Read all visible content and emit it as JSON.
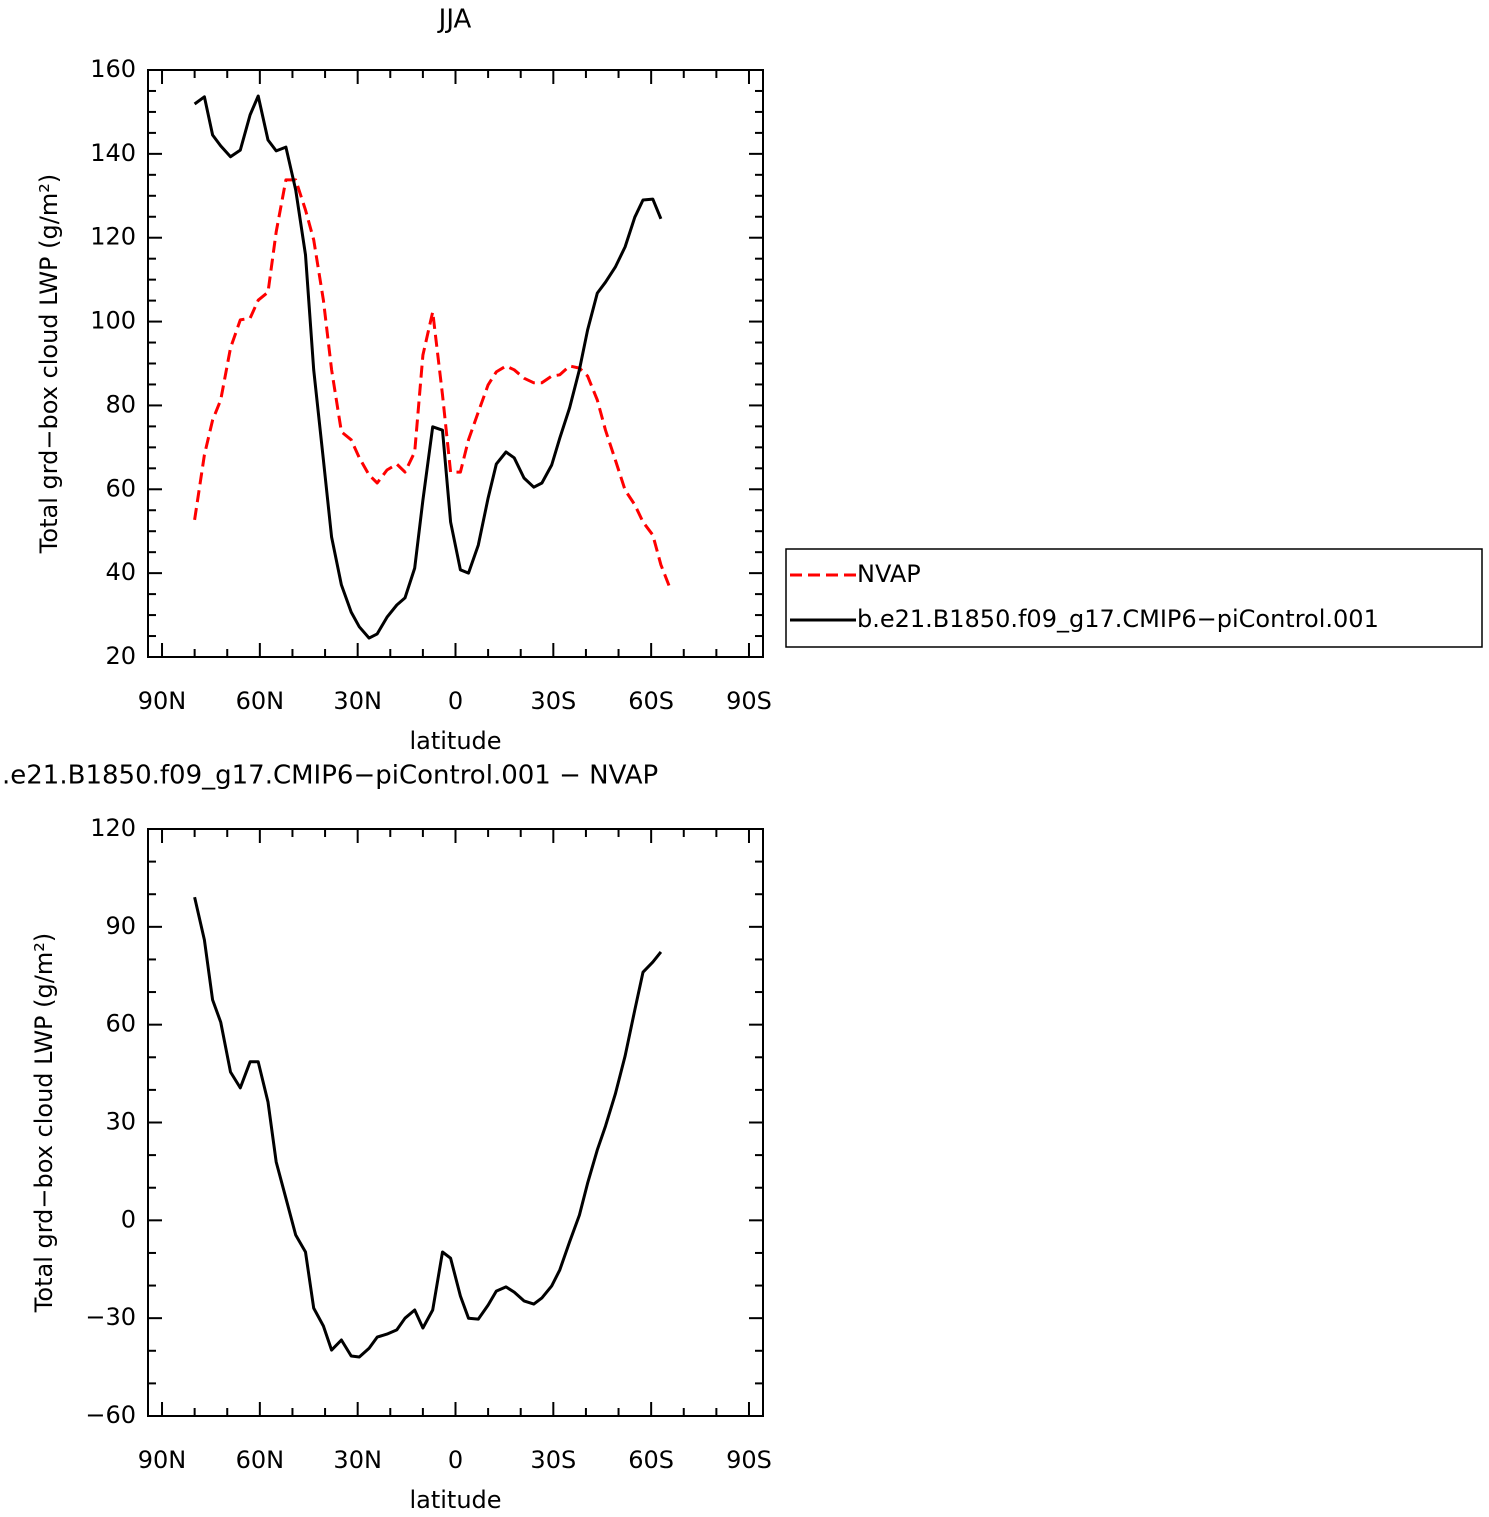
{
  "chart_data": [
    {
      "type": "line",
      "title": "JJA",
      "xlabel": "latitude",
      "ylabel": "Total grd−box cloud LWP (g/m²)",
      "x": [
        80,
        77,
        74.5,
        72,
        69,
        66,
        63,
        60.5,
        57.5,
        55,
        52,
        49,
        46,
        43.5,
        40.5,
        38,
        35,
        32,
        29.5,
        26.5,
        24,
        21,
        18,
        15.5,
        12.5,
        10,
        7,
        4,
        1.5,
        -1.5,
        -4,
        -7,
        -10,
        -12.5,
        -15.5,
        -18,
        -21,
        -24,
        -26.5,
        -29.5,
        -32,
        -35,
        -38,
        -40.5,
        -43.5,
        -46,
        -49,
        -52,
        -55,
        -57.5,
        -60.5,
        -63,
        -66
      ],
      "xlim": [
        94.3,
        -94.3
      ],
      "xticks": [
        {
          "value": 90,
          "label": "90N"
        },
        {
          "value": 60,
          "label": "60N"
        },
        {
          "value": 30,
          "label": "30N"
        },
        0,
        {
          "value": -30,
          "label": "30S"
        },
        {
          "value": -60,
          "label": "60S"
        },
        {
          "value": -90,
          "label": "90S"
        }
      ],
      "ylim": [
        20,
        160
      ],
      "yticks": [
        20,
        40,
        60,
        80,
        100,
        120,
        140,
        160
      ],
      "legend": "outside-right",
      "series": [
        {
          "name": "NVAP",
          "color": "#ff0000",
          "linestyle": "dashed",
          "values": [
            52.7,
            68.2,
            76.5,
            81.3,
            93.7,
            100.4,
            100.8,
            105.1,
            107,
            121.4,
            133.8,
            133.8,
            126.6,
            119.5,
            105.1,
            88.5,
            73.7,
            71.8,
            67.5,
            63.4,
            61.5,
            64.6,
            66,
            64.1,
            68.9,
            92,
            102.3,
            82.5,
            64.1,
            64.1,
            71.8,
            78.4,
            84.9,
            88,
            89.4,
            88.5,
            86.5,
            85.4,
            85.4,
            87,
            87.3,
            89.4,
            88.9,
            87,
            81.3,
            74.1,
            67,
            59.8,
            56.3,
            52.2,
            49.1,
            42,
            36
          ]
        },
        {
          "name": "b.e21.B1850.f09_g17.CMIP6−piControl.001",
          "color": "#000000",
          "linestyle": "solid",
          "values": [
            151.9,
            153.6,
            144.5,
            141.9,
            139.3,
            140.9,
            149.3,
            153.8,
            143.3,
            140.7,
            141.6,
            131.4,
            115.9,
            88.5,
            67,
            48.6,
            37.2,
            30.7,
            27.2,
            24.5,
            25.5,
            29.5,
            32.4,
            34.1,
            41.2,
            57.4,
            74.9,
            74.1,
            52.2,
            40.8,
            40,
            46.7,
            57.9,
            66,
            68.9,
            67.5,
            62.7,
            60.5,
            61.5,
            65.8,
            72.2,
            79.4,
            88.5,
            98,
            106.8,
            109.4,
            113,
            117.8,
            124.9,
            129,
            129.2,
            124.5,
            null
          ]
        }
      ]
    },
    {
      "type": "line",
      "title": ".e21.B1850.f09_g17.CMIP6−piControl.001  −  NVAP",
      "xlabel": "latitude",
      "ylabel": "Total grd−box cloud LWP (g/m²)",
      "x": [
        80,
        77,
        74.5,
        72,
        69,
        66,
        63,
        60.5,
        57.5,
        55,
        52,
        49,
        46,
        43.5,
        40.5,
        38,
        35,
        32,
        29.5,
        26.5,
        24,
        21,
        18,
        15.5,
        12.5,
        10,
        7,
        4,
        1.5,
        -1.5,
        -4,
        -7,
        -10,
        -12.5,
        -15.5,
        -18,
        -21,
        -24,
        -26.5,
        -29.5,
        -32,
        -35,
        -38,
        -40.5,
        -43.5,
        -46,
        -49,
        -52,
        -55,
        -57.5,
        -60.5,
        -63,
        -66
      ],
      "xlim": [
        94.3,
        -94.3
      ],
      "xticks": [
        {
          "value": 90,
          "label": "90N"
        },
        {
          "value": 60,
          "label": "60N"
        },
        {
          "value": 30,
          "label": "30N"
        },
        0,
        {
          "value": -30,
          "label": "30S"
        },
        {
          "value": -60,
          "label": "60S"
        },
        {
          "value": -90,
          "label": "90S"
        }
      ],
      "ylim": [
        -60,
        120
      ],
      "yticks": [
        {
          "value": -60,
          "label": "−60"
        },
        {
          "value": -30,
          "label": "−30"
        },
        0,
        30,
        60,
        90,
        120
      ],
      "series": [
        {
          "color": "#000000",
          "linestyle": "solid",
          "values": [
            99.1,
            86,
            67.6,
            60.8,
            45.5,
            40.6,
            48.6,
            48.6,
            36.3,
            17.9,
            6.8,
            -4.5,
            -9.7,
            -26.9,
            -32.4,
            -39.8,
            -36.7,
            -41.6,
            -41.9,
            -39.2,
            -35.8,
            -34.9,
            -33.6,
            -30,
            -27.5,
            -33,
            -27.5,
            -9.7,
            -11.6,
            -23.2,
            -30,
            -30.3,
            -26,
            -21.7,
            -20.4,
            -22,
            -24.7,
            -25.7,
            -23.8,
            -20.1,
            -15.2,
            -6.6,
            1.6,
            11.4,
            21.6,
            28.9,
            38.7,
            50.4,
            64.5,
            76.1,
            79.2,
            82.3,
            null
          ]
        }
      ]
    }
  ]
}
